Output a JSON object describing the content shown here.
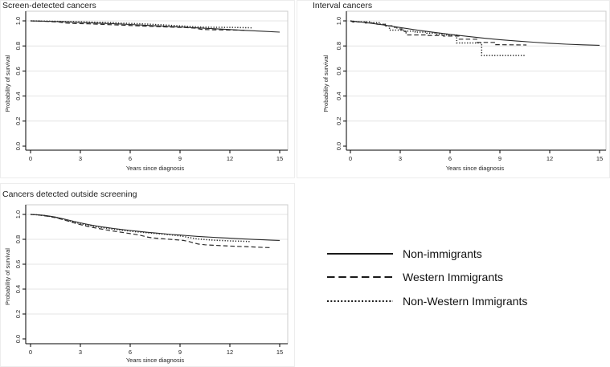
{
  "figure": {
    "background": "#ffffff"
  },
  "colors": {
    "curve": "#2a2a2a",
    "grid": "#e4e4e4",
    "frame": "#cccccc",
    "axis": "#000000",
    "text": "#1f1f1f",
    "title": "#1f1f1f"
  },
  "legend": {
    "items": [
      {
        "label": "Non-immigrants",
        "style": "solid"
      },
      {
        "label": "Western Immigrants",
        "style": "dashed"
      },
      {
        "label": "Non-Western Immigrants",
        "style": "dotted"
      }
    ]
  },
  "chart_data": [
    {
      "type": "line",
      "title": "Screen-detected cancers",
      "xlabel": "Years since diagnosis",
      "ylabel": "Probability of survival",
      "xlim": [
        0,
        15
      ],
      "ylim": [
        0.0,
        1.0
      ],
      "xticks": [
        0,
        3,
        6,
        9,
        12,
        15
      ],
      "yticks": [
        0.0,
        0.2,
        0.4,
        0.6,
        0.8,
        1.0
      ],
      "ytick_labels": [
        "0.0",
        "0.2",
        "0.4",
        "0.6",
        "0.8",
        "1.0"
      ],
      "grid": true,
      "series": [
        {
          "name": "Non-immigrants",
          "style": "solid",
          "points": [
            [
              0,
              1.0
            ],
            [
              1,
              0.997
            ],
            [
              2,
              0.993
            ],
            [
              3,
              0.988
            ],
            [
              4,
              0.982
            ],
            [
              5,
              0.977
            ],
            [
              6,
              0.971
            ],
            [
              7,
              0.964
            ],
            [
              8,
              0.958
            ],
            [
              9,
              0.951
            ],
            [
              10,
              0.944
            ],
            [
              11,
              0.938
            ],
            [
              12,
              0.931
            ],
            [
              13,
              0.924
            ],
            [
              14,
              0.917
            ],
            [
              15,
              0.91
            ]
          ]
        },
        {
          "name": "Western Immigrants",
          "style": "dashed",
          "points": [
            [
              0,
              1.0
            ],
            [
              0.8,
              0.997
            ],
            [
              1.7,
              0.991
            ],
            [
              2.1,
              0.983
            ],
            [
              2.6,
              0.979
            ],
            [
              3.5,
              0.976
            ],
            [
              4.5,
              0.971
            ],
            [
              5.5,
              0.966
            ],
            [
              6.5,
              0.96
            ],
            [
              7.5,
              0.955
            ],
            [
              8.5,
              0.95
            ],
            [
              9.4,
              0.946
            ],
            [
              9.9,
              0.942
            ],
            [
              10.3,
              0.932
            ],
            [
              11,
              0.929
            ],
            [
              12,
              0.927
            ],
            [
              13,
              0.925
            ]
          ]
        },
        {
          "name": "Non-Western Immigrants",
          "style": "dotted",
          "points": [
            [
              0,
              1.0
            ],
            [
              1,
              0.998
            ],
            [
              2,
              0.995
            ],
            [
              3,
              0.992
            ],
            [
              4,
              0.989
            ],
            [
              5,
              0.986
            ],
            [
              5.4,
              0.982
            ],
            [
              6.4,
              0.978
            ],
            [
              7.4,
              0.972
            ],
            [
              8.4,
              0.965
            ],
            [
              9,
              0.96
            ],
            [
              9.6,
              0.955
            ],
            [
              10.1,
              0.951
            ],
            [
              11,
              0.949
            ],
            [
              12,
              0.948
            ],
            [
              13.3,
              0.945
            ]
          ]
        }
      ]
    },
    {
      "type": "line",
      "title": "Interval cancers",
      "xlabel": "Years since diagnosis",
      "ylabel": "Probability of survival",
      "xlim": [
        0,
        15
      ],
      "ylim": [
        0.0,
        1.0
      ],
      "xticks": [
        0,
        3,
        6,
        9,
        12,
        15
      ],
      "yticks": [
        0.0,
        0.2,
        0.4,
        0.6,
        0.8,
        1.0
      ],
      "ytick_labels": [
        "0.0",
        "0.2",
        "0.4",
        "0.6",
        "0.8",
        "1.0"
      ],
      "grid": true,
      "series": [
        {
          "name": "Non-immigrants",
          "style": "solid",
          "points": [
            [
              0,
              1.0
            ],
            [
              1,
              0.985
            ],
            [
              2,
              0.967
            ],
            [
              3,
              0.947
            ],
            [
              4,
              0.927
            ],
            [
              5,
              0.909
            ],
            [
              6,
              0.892
            ],
            [
              7,
              0.877
            ],
            [
              8,
              0.863
            ],
            [
              9,
              0.85
            ],
            [
              10,
              0.839
            ],
            [
              11,
              0.83
            ],
            [
              12,
              0.821
            ],
            [
              13,
              0.814
            ],
            [
              14,
              0.809
            ],
            [
              15,
              0.805
            ]
          ]
        },
        {
          "name": "Western Immigrants",
          "style": "dashed",
          "points": [
            [
              0,
              1.0
            ],
            [
              0.15,
              0.991
            ],
            [
              0.9,
              0.991
            ],
            [
              0.9,
              0.983
            ],
            [
              1.6,
              0.983
            ],
            [
              1.6,
              0.973
            ],
            [
              2.1,
              0.973
            ],
            [
              2.1,
              0.961
            ],
            [
              2.5,
              0.961
            ],
            [
              2.5,
              0.949
            ],
            [
              2.8,
              0.949
            ],
            [
              2.8,
              0.936
            ],
            [
              3.1,
              0.936
            ],
            [
              3.1,
              0.916
            ],
            [
              3.35,
              0.916
            ],
            [
              3.35,
              0.888
            ],
            [
              4.6,
              0.888
            ],
            [
              4.6,
              0.884
            ],
            [
              5.6,
              0.884
            ],
            [
              5.6,
              0.879
            ],
            [
              6.55,
              0.879
            ],
            [
              6.55,
              0.854
            ],
            [
              7.6,
              0.854
            ],
            [
              7.6,
              0.828
            ],
            [
              8.75,
              0.828
            ],
            [
              8.75,
              0.81
            ],
            [
              10.6,
              0.808
            ]
          ]
        },
        {
          "name": "Non-Western Immigrants",
          "style": "dotted",
          "points": [
            [
              0,
              1.0
            ],
            [
              0.4,
              0.993
            ],
            [
              1.2,
              0.993
            ],
            [
              1.2,
              0.986
            ],
            [
              1.8,
              0.986
            ],
            [
              1.8,
              0.973
            ],
            [
              2.1,
              0.973
            ],
            [
              2.1,
              0.959
            ],
            [
              2.35,
              0.959
            ],
            [
              2.35,
              0.926
            ],
            [
              3.2,
              0.926
            ],
            [
              3.2,
              0.918
            ],
            [
              3.9,
              0.918
            ],
            [
              3.9,
              0.91
            ],
            [
              4.6,
              0.91
            ],
            [
              4.6,
              0.902
            ],
            [
              5.2,
              0.902
            ],
            [
              5.2,
              0.894
            ],
            [
              5.8,
              0.894
            ],
            [
              5.8,
              0.887
            ],
            [
              6.4,
              0.887
            ],
            [
              6.4,
              0.824
            ],
            [
              7.9,
              0.824
            ],
            [
              7.9,
              0.724
            ],
            [
              10.5,
              0.724
            ]
          ]
        }
      ]
    },
    {
      "type": "line",
      "title": "Cancers detected outside screening",
      "xlabel": "Years since diagnosis",
      "ylabel": "Probability of survival",
      "xlim": [
        0,
        15
      ],
      "ylim": [
        0.0,
        1.0
      ],
      "xticks": [
        0,
        3,
        6,
        9,
        12,
        15
      ],
      "yticks": [
        0.0,
        0.2,
        0.4,
        0.6,
        0.8,
        1.0
      ],
      "ytick_labels": [
        "0.0",
        "0.2",
        "0.4",
        "0.6",
        "0.8",
        "1.0"
      ],
      "grid": true,
      "series": [
        {
          "name": "Non-immigrants",
          "style": "solid",
          "points": [
            [
              0,
              1.0
            ],
            [
              0.5,
              0.996
            ],
            [
              1,
              0.989
            ],
            [
              1.5,
              0.979
            ],
            [
              2,
              0.964
            ],
            [
              2.5,
              0.948
            ],
            [
              3,
              0.932
            ],
            [
              3.5,
              0.918
            ],
            [
              4,
              0.906
            ],
            [
              4.5,
              0.896
            ],
            [
              5,
              0.887
            ],
            [
              5.5,
              0.879
            ],
            [
              6,
              0.871
            ],
            [
              6.5,
              0.864
            ],
            [
              7,
              0.857
            ],
            [
              7.5,
              0.851
            ],
            [
              8,
              0.845
            ],
            [
              8.5,
              0.839
            ],
            [
              9,
              0.834
            ],
            [
              9.5,
              0.829
            ],
            [
              10,
              0.824
            ],
            [
              10.5,
              0.82
            ],
            [
              11,
              0.816
            ],
            [
              11.5,
              0.812
            ],
            [
              12,
              0.809
            ],
            [
              12.5,
              0.805
            ],
            [
              13,
              0.802
            ],
            [
              13.5,
              0.799
            ],
            [
              14,
              0.796
            ],
            [
              14.5,
              0.793
            ],
            [
              15,
              0.791
            ]
          ]
        },
        {
          "name": "Western Immigrants",
          "style": "dashed",
          "points": [
            [
              0,
              1.0
            ],
            [
              0.5,
              0.995
            ],
            [
              1,
              0.986
            ],
            [
              1.5,
              0.974
            ],
            [
              2,
              0.957
            ],
            [
              2.5,
              0.937
            ],
            [
              3,
              0.918
            ],
            [
              3.5,
              0.902
            ],
            [
              4,
              0.889
            ],
            [
              4.5,
              0.877
            ],
            [
              5,
              0.866
            ],
            [
              5.5,
              0.856
            ],
            [
              6,
              0.846
            ],
            [
              6.3,
              0.84
            ],
            [
              6.7,
              0.83
            ],
            [
              7,
              0.819
            ],
            [
              7.3,
              0.812
            ],
            [
              7.7,
              0.807
            ],
            [
              8.2,
              0.802
            ],
            [
              8.7,
              0.797
            ],
            [
              9.2,
              0.791
            ],
            [
              9.5,
              0.784
            ],
            [
              9.8,
              0.772
            ],
            [
              10.1,
              0.762
            ],
            [
              10.5,
              0.756
            ],
            [
              11,
              0.752
            ],
            [
              11.5,
              0.749
            ],
            [
              12,
              0.746
            ],
            [
              12.5,
              0.743
            ],
            [
              13,
              0.741
            ],
            [
              13.5,
              0.738
            ],
            [
              14,
              0.735
            ],
            [
              14.5,
              0.733
            ]
          ]
        },
        {
          "name": "Non-Western Immigrants",
          "style": "dotted",
          "points": [
            [
              0,
              1.0
            ],
            [
              0.5,
              0.996
            ],
            [
              1,
              0.988
            ],
            [
              1.5,
              0.976
            ],
            [
              2,
              0.96
            ],
            [
              2.5,
              0.942
            ],
            [
              3,
              0.926
            ],
            [
              3.5,
              0.912
            ],
            [
              4,
              0.9
            ],
            [
              4.5,
              0.89
            ],
            [
              5,
              0.881
            ],
            [
              5.5,
              0.873
            ],
            [
              6,
              0.866
            ],
            [
              6.5,
              0.859
            ],
            [
              7,
              0.853
            ],
            [
              7.5,
              0.847
            ],
            [
              8,
              0.841
            ],
            [
              8.5,
              0.835
            ],
            [
              9,
              0.828
            ],
            [
              9.3,
              0.82
            ],
            [
              9.7,
              0.811
            ],
            [
              10,
              0.804
            ],
            [
              10.5,
              0.798
            ],
            [
              11,
              0.793
            ],
            [
              11.5,
              0.79
            ],
            [
              12,
              0.787
            ],
            [
              12.5,
              0.785
            ],
            [
              13,
              0.783
            ],
            [
              13.2,
              0.782
            ]
          ]
        }
      ]
    }
  ]
}
